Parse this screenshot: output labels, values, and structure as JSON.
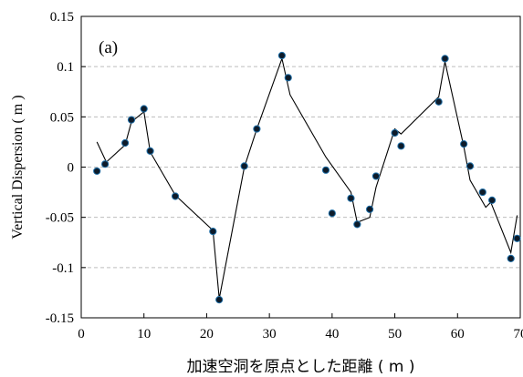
{
  "chart_data": {
    "type": "scatter",
    "panel_label": "(a)",
    "xlabel": "加速空洞を原点とした距離 ( m )",
    "ylabel": "Vertical Dispersion ( m )",
    "xlim": [
      0,
      70
    ],
    "ylim": [
      -0.15,
      0.15
    ],
    "x_ticks": [
      "0",
      "10",
      "20",
      "30",
      "40",
      "50",
      "60",
      "70"
    ],
    "y_ticks": [
      "-0.15",
      "-0.1",
      "-0.05",
      "0",
      "0.05",
      "0.1",
      "0.15"
    ],
    "grid": "horizontal dashed",
    "series": [
      {
        "kind": "line",
        "color": "#000000",
        "x": [
          2.5,
          4,
          7,
          8,
          10,
          11,
          15,
          21,
          22,
          26,
          28,
          32,
          33.3,
          39,
          43,
          44,
          46,
          47,
          50,
          51,
          57,
          58,
          61,
          62,
          64.5,
          65.3,
          68.5,
          69.5
        ],
        "y": [
          0.025,
          0.005,
          0.022,
          0.045,
          0.055,
          0.015,
          -0.028,
          -0.063,
          -0.131,
          0,
          0.038,
          0.108,
          0.072,
          0.01,
          -0.025,
          -0.055,
          -0.05,
          -0.02,
          0.038,
          0.033,
          0.07,
          0.105,
          0.02,
          -0.013,
          -0.04,
          -0.035,
          -0.085,
          -0.048
        ]
      },
      {
        "kind": "markers",
        "color": "#0d1b2a",
        "edge_color": "#1f6fa8",
        "x": [
          2.5,
          3.8,
          7,
          8,
          10,
          11,
          15,
          21,
          22,
          26,
          28,
          32,
          33,
          39,
          40,
          43,
          44,
          46,
          47,
          50,
          51,
          57,
          58,
          61,
          62,
          64,
          65.5,
          68.5,
          69.5
        ],
        "y": [
          -0.004,
          0.003,
          0.024,
          0.047,
          0.058,
          0.016,
          -0.029,
          -0.064,
          -0.132,
          0.001,
          0.038,
          0.111,
          0.089,
          -0.003,
          -0.046,
          -0.031,
          -0.057,
          -0.042,
          -0.009,
          0.034,
          0.021,
          0.065,
          0.108,
          0.023,
          0.001,
          -0.025,
          -0.033,
          -0.091,
          -0.071
        ]
      }
    ]
  }
}
